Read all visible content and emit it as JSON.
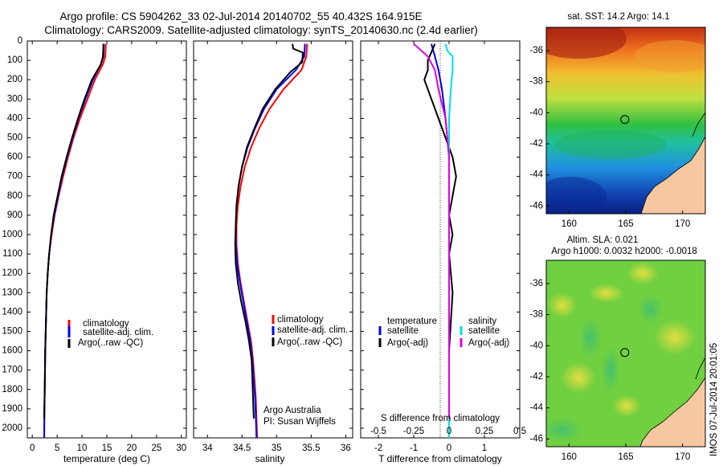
{
  "header": {
    "title_line1": "Argo profile: CS 5904262_33 02-Jul-2014 20140702_55 40.432S 164.915E",
    "title_line2": "Climatology: CARS2009. Satellite-adjusted climatology: synTS_20140630.nc (2.4d earlier)"
  },
  "side_stamp": "IMOS 07-Jul-2014 20:01:05",
  "colors": {
    "climatology": "#ff0000",
    "satellite": "#0000ff",
    "argo": "#000000",
    "sal_satellite": "#00e0e0",
    "sal_argo": "#e000e0"
  },
  "chart_data": [
    {
      "id": "temperature",
      "type": "line",
      "xlabel": "temperature (deg C)",
      "xlim": [
        -1,
        31
      ],
      "xticks": [
        0,
        5,
        10,
        15,
        20,
        25,
        30
      ],
      "ylim": [
        0,
        2050
      ],
      "yticks": [
        0,
        100,
        200,
        300,
        400,
        500,
        600,
        700,
        800,
        900,
        1000,
        1100,
        1200,
        1300,
        1400,
        1500,
        1600,
        1700,
        1800,
        1900,
        2000
      ],
      "legend": [
        "climatology",
        "satellite-adj. clim.",
        "Argo(..raw -QC)"
      ],
      "series": [
        {
          "name": "climatology",
          "color": "#ff0000",
          "x": [
            14.8,
            14.7,
            14.2,
            12.6,
            11.1,
            9.6,
            8.3,
            7.2,
            6.2,
            5.3,
            4.5,
            3.9,
            3.4,
            3.1,
            2.9,
            2.8,
            2.7,
            2.6,
            2.55,
            2.5,
            2.45,
            2.4
          ],
          "y": [
            15,
            80,
            120,
            200,
            300,
            400,
            500,
            600,
            700,
            800,
            900,
            1000,
            1100,
            1200,
            1300,
            1400,
            1500,
            1600,
            1700,
            1800,
            1900,
            2050
          ]
        },
        {
          "name": "satellite-adj. clim.",
          "color": "#0000ff",
          "x": [
            14.3,
            14.2,
            13.8,
            12.2,
            10.7,
            9.3,
            8.1,
            7.0,
            6.0,
            5.2,
            4.4,
            3.8,
            3.4,
            3.1,
            2.9,
            2.8,
            2.7,
            2.6,
            2.55,
            2.5,
            2.45,
            2.4
          ],
          "y": [
            15,
            80,
            120,
            200,
            300,
            400,
            500,
            600,
            700,
            800,
            900,
            1000,
            1100,
            1200,
            1300,
            1400,
            1500,
            1600,
            1700,
            1800,
            1900,
            2050
          ]
        },
        {
          "name": "Argo(..raw -QC)",
          "color": "#000000",
          "x": [
            14.4,
            14.3,
            13.8,
            12.0,
            10.5,
            9.2,
            8.0,
            6.9,
            5.9,
            5.1,
            4.3,
            3.8,
            3.4,
            3.1,
            2.9,
            2.8,
            2.7,
            2.6,
            2.55,
            2.5,
            2.4
          ],
          "y": [
            15,
            80,
            120,
            200,
            300,
            400,
            500,
            600,
            700,
            800,
            900,
            1000,
            1100,
            1200,
            1300,
            1400,
            1500,
            1600,
            1700,
            1800,
            1950
          ]
        }
      ]
    },
    {
      "id": "salinity",
      "type": "line",
      "xlabel": "salinity",
      "xlim": [
        33.8,
        36.1
      ],
      "xticks": [
        34,
        34.5,
        35,
        35.5,
        36
      ],
      "ylim": [
        0,
        2050
      ],
      "legend": [
        "climatology",
        "satellite-adj. clim.",
        "Argo(..raw -QC)"
      ],
      "annotation": [
        "Argo Australia",
        "PI: Susan Wijffels"
      ],
      "series": [
        {
          "name": "climatology",
          "color": "#ff0000",
          "x": [
            35.44,
            35.43,
            35.36,
            35.1,
            34.9,
            34.75,
            34.63,
            34.54,
            34.48,
            34.44,
            34.42,
            34.42,
            34.44,
            34.48,
            34.53,
            34.58,
            34.63,
            34.66,
            34.68,
            34.7,
            34.71,
            34.72
          ],
          "y": [
            15,
            80,
            150,
            250,
            350,
            450,
            550,
            650,
            750,
            850,
            950,
            1050,
            1150,
            1250,
            1350,
            1450,
            1550,
            1650,
            1750,
            1850,
            1950,
            2050
          ]
        },
        {
          "name": "satellite-adj. clim.",
          "color": "#0000ff",
          "x": [
            35.41,
            35.4,
            35.28,
            35.0,
            34.82,
            34.69,
            34.58,
            34.5,
            34.45,
            34.42,
            34.41,
            34.41,
            34.43,
            34.47,
            34.52,
            34.57,
            34.62,
            34.65,
            34.67,
            34.69,
            34.7,
            34.71
          ],
          "y": [
            15,
            80,
            150,
            250,
            350,
            450,
            550,
            650,
            750,
            850,
            950,
            1050,
            1150,
            1250,
            1350,
            1450,
            1550,
            1650,
            1750,
            1850,
            1950,
            2050
          ]
        },
        {
          "name": "Argo(..raw -QC)",
          "color": "#000000",
          "x": [
            35.23,
            35.24,
            35.38,
            35.37,
            35.2,
            34.98,
            34.8,
            34.68,
            34.57,
            34.5,
            34.45,
            34.42,
            34.41,
            34.4,
            34.41,
            34.44,
            34.49,
            34.55,
            34.6,
            34.64,
            34.67
          ],
          "y": [
            15,
            40,
            60,
            110,
            160,
            250,
            350,
            450,
            550,
            650,
            750,
            850,
            950,
            1050,
            1150,
            1250,
            1350,
            1450,
            1550,
            1650,
            1950
          ]
        }
      ]
    },
    {
      "id": "difference",
      "type": "line",
      "xlabel": "T difference from climatology",
      "xlabel_top": "S difference from climatology",
      "xlim": [
        -2.5,
        2.0
      ],
      "xticks": [
        -2,
        -1,
        0,
        1
      ],
      "xticks_s_labels": [
        "-0.5",
        "-0.25",
        "0",
        "0.25",
        "0.5"
      ],
      "xticks_s_pos": [
        -2,
        -1,
        0,
        1,
        2
      ],
      "ylim": [
        0,
        2050
      ],
      "legend_temperature": [
        "temperature",
        "satellite",
        "Argo(-adj)"
      ],
      "legend_salinity": [
        "salinity",
        "satellite",
        "Argo(-adj)"
      ],
      "series": [
        {
          "name": "temperature satellite",
          "color": "#0000ff",
          "x": [
            -0.5,
            -0.4,
            -0.3,
            -0.2,
            -0.1,
            -0.05,
            0.0,
            0.0,
            0.0,
            0.0
          ],
          "y": [
            15,
            80,
            150,
            250,
            400,
            500,
            600,
            900,
            1500,
            2050
          ]
        },
        {
          "name": "temperature Argo(-adj)",
          "color": "#000000",
          "x": [
            -0.4,
            -0.6,
            -0.6,
            -0.7,
            -0.5,
            -0.3,
            -0.2,
            -0.1,
            0.1,
            0.2,
            0.1,
            0.0,
            0.1,
            0.0,
            0.1,
            0.0,
            0.0
          ],
          "y": [
            15,
            100,
            150,
            200,
            300,
            400,
            450,
            500,
            600,
            700,
            800,
            900,
            1000,
            1100,
            1300,
            1600,
            1950
          ]
        },
        {
          "name": "salinity satellite",
          "color": "#00e0e0",
          "x": [
            -0.1,
            -0.05,
            0.1,
            0.1,
            0.05,
            0.0,
            0.0,
            0.0,
            0.0,
            0.0
          ],
          "y": [
            15,
            50,
            80,
            150,
            250,
            400,
            600,
            900,
            1500,
            2050
          ]
        },
        {
          "name": "salinity Argo(-adj)",
          "color": "#e000e0",
          "x": [
            -1.0,
            -0.6,
            -0.4,
            -0.3,
            -0.1,
            0.0,
            0.0,
            0.0,
            0.0
          ],
          "y": [
            15,
            80,
            150,
            250,
            400,
            600,
            900,
            1500,
            1950
          ]
        }
      ]
    },
    {
      "id": "sst-map",
      "type": "heatmap",
      "title": "sat. SST: 14.2 Argo: 14.1",
      "xlim": [
        158,
        172
      ],
      "ylim": [
        -46.5,
        -34.5
      ],
      "xticks": [
        160,
        165,
        170
      ],
      "yticks": [
        -36,
        -38,
        -40,
        -42,
        -44,
        -46
      ],
      "marker": {
        "lon": 164.915,
        "lat": -40.432
      }
    },
    {
      "id": "sla-map",
      "type": "heatmap",
      "title": "Altim. SLA: 0.021",
      "subtitle": "Argo h1000: 0.0032 h2000: -0.0018",
      "xlim": [
        158,
        172
      ],
      "ylim": [
        -46.5,
        -34.5
      ],
      "xticks": [
        160,
        165,
        170
      ],
      "yticks": [
        -36,
        -38,
        -40,
        -42,
        -44,
        -46
      ],
      "marker": {
        "lon": 164.915,
        "lat": -40.432
      }
    }
  ]
}
